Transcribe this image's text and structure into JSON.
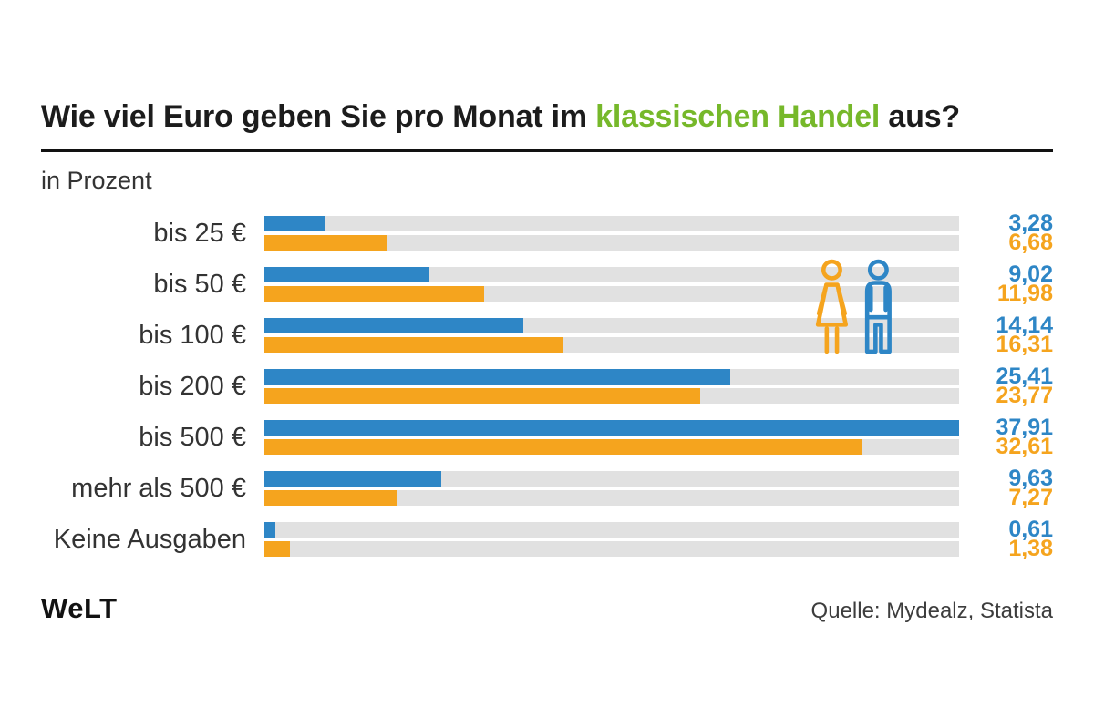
{
  "theme": {
    "blue": "#2e86c6",
    "orange": "#f5a41e",
    "green": "#76b82a",
    "track": "#e1e1e1",
    "ink": "#1c1c1c"
  },
  "header": {
    "title_parts": [
      {
        "text": "Wie viel Euro geben Sie pro Monat im "
      },
      {
        "text": "klassischen Handel"
      },
      {
        "text": " aus?"
      }
    ],
    "subtitle": "in Prozent"
  },
  "chart_data": {
    "type": "bar",
    "orientation": "horizontal",
    "title": "Wie viel Euro geben Sie pro Monat im klassischen Handel aus?",
    "unit_label": "in Prozent",
    "categories": [
      "bis 25 €",
      "bis 50 €",
      "bis 100 €",
      "bis 200 €",
      "bis 500 €",
      "mehr als 500 €",
      "Keine Ausgaben"
    ],
    "series": [
      {
        "name": "male (blue figure)",
        "color": "#2e86c6",
        "values": [
          3.28,
          9.02,
          14.14,
          25.41,
          37.91,
          9.63,
          0.61
        ],
        "labels": [
          "3,28",
          "9,02",
          "14,14",
          "25,41",
          "37,91",
          "9,63",
          "0,61"
        ]
      },
      {
        "name": "female (orange figure)",
        "color": "#f5a41e",
        "values": [
          6.68,
          11.98,
          16.31,
          23.77,
          32.61,
          7.27,
          1.38
        ],
        "labels": [
          "6,68",
          "11,98",
          "16,31",
          "23,77",
          "32,61",
          "7,27",
          "1,38"
        ]
      }
    ],
    "xlim": [
      0,
      37.91
    ],
    "grid": false,
    "legend": "pictogram (woman orange, man blue) at top right of plot area",
    "value_labels_position": "right"
  },
  "footer": {
    "logo": "WeLT",
    "source": "Quelle: Mydealz, Statista"
  }
}
